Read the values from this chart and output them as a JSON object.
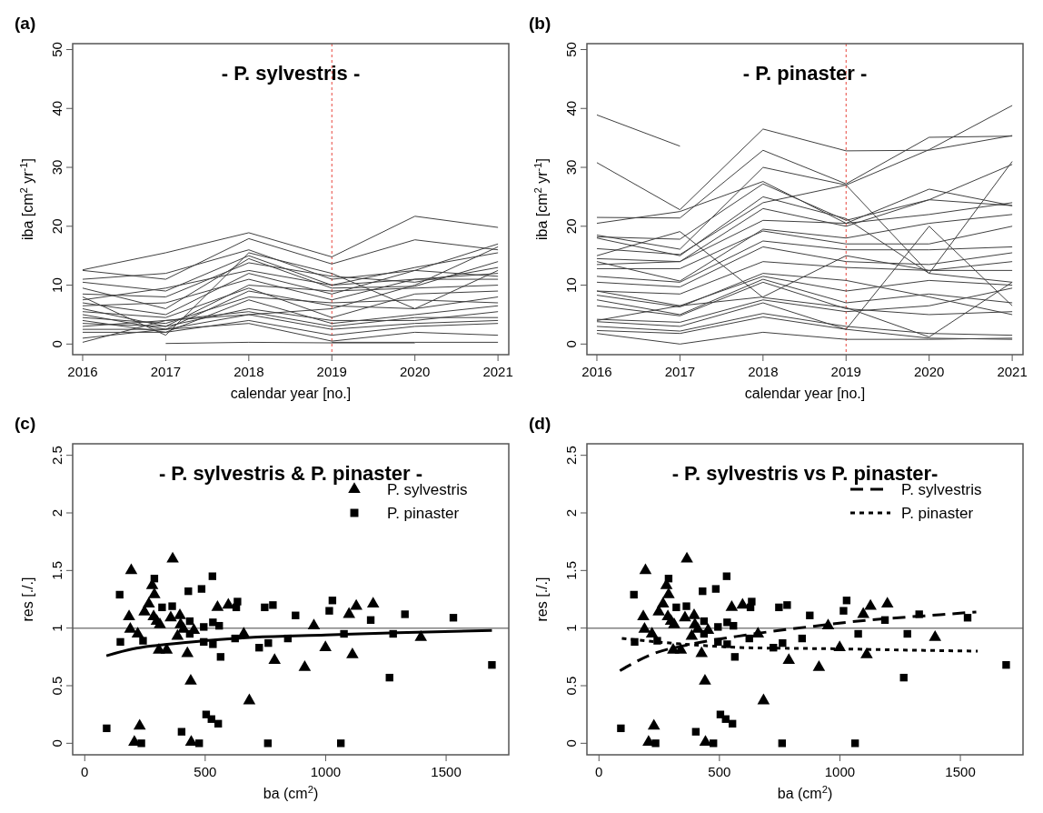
{
  "chart_data": [
    {
      "type": "line",
      "title": "- P. sylvestris -",
      "xlabel": "calendar year [no.]",
      "ylabel": "iba [cm$^{2}$ yr$^{-1}$]",
      "annotations": [
        "(a)"
      ],
      "xlim": [
        2015.88,
        2021.13
      ],
      "xticks": [
        2016,
        2017,
        2018,
        2019,
        2020,
        2021
      ],
      "ylim": [
        -1.8,
        51
      ],
      "yticks": [
        0,
        10,
        20,
        30,
        40,
        50
      ],
      "ref_lines": [
        {
          "axis": "x",
          "value": 2019,
          "color": "#e8463c",
          "line_style": "dashed"
        }
      ],
      "x": [
        2016,
        2017,
        2018,
        2019,
        2020,
        2021
      ],
      "series": [
        {
          "color": "#404040",
          "values": [
            12.6,
            15.5,
            18.9,
            14.8,
            21.7,
            19.8
          ]
        },
        {
          "color": "#404040",
          "values": [
            12.5,
            11.0,
            17.9,
            13.6,
            17.7,
            16.0
          ]
        },
        {
          "color": "#404040",
          "values": [
            11.0,
            12.0,
            16.0,
            11.0,
            12.5,
            17.0
          ]
        },
        {
          "color": "#404040",
          "values": [
            10.5,
            9.0,
            15.0,
            10.0,
            13.0,
            15.5
          ]
        },
        {
          "color": "#404040",
          "values": [
            9.5,
            6.0,
            14.5,
            9.5,
            9.8,
            14.0
          ]
        },
        {
          "color": "#404040",
          "values": [
            8.5,
            8.0,
            13.8,
            11.5,
            10.5,
            13.0
          ]
        },
        {
          "color": "#404040",
          "values": [
            8.0,
            1.5,
            15.5,
            12.0,
            6.0,
            12.5
          ]
        },
        {
          "color": "#404040",
          "values": [
            7.5,
            9.5,
            12.5,
            10.0,
            11.0,
            12.0
          ]
        },
        {
          "color": "#404040",
          "values": [
            7.0,
            5.0,
            12.0,
            8.5,
            12.5,
            11.5
          ]
        },
        {
          "color": "#404040",
          "values": [
            6.5,
            7.0,
            11.0,
            7.5,
            11.0,
            11.0
          ]
        },
        {
          "color": "#404040",
          "values": [
            6.0,
            3.0,
            10.0,
            9.0,
            9.5,
            10.0
          ]
        },
        {
          "color": "#404040",
          "values": [
            5.5,
            4.5,
            9.5,
            4.5,
            8.5,
            9.0
          ]
        },
        {
          "color": "#404040",
          "values": [
            5.0,
            2.5,
            9.0,
            6.5,
            6.0,
            8.0
          ]
        },
        {
          "color": "#404040",
          "values": [
            4.5,
            3.5,
            8.0,
            7.0,
            7.5,
            7.0
          ]
        },
        {
          "color": "#404040",
          "values": [
            4.0,
            2.0,
            7.5,
            3.5,
            5.0,
            6.5
          ]
        },
        {
          "color": "#404040",
          "values": [
            3.5,
            3.0,
            6.0,
            4.0,
            4.0,
            5.5
          ]
        },
        {
          "color": "#404040",
          "values": [
            3.0,
            4.0,
            5.5,
            3.0,
            4.5,
            4.5
          ]
        },
        {
          "color": "#404040",
          "values": [
            2.5,
            2.5,
            5.0,
            2.5,
            3.5,
            4.0
          ]
        },
        {
          "color": "#404040",
          "values": [
            2.0,
            2.0,
            4.0,
            1.5,
            3.0,
            3.5
          ]
        },
        {
          "color": "#404040",
          "values": [
            1.0,
            2.5,
            3.5,
            0.5,
            2.0,
            1.5
          ]
        },
        {
          "color": "#404040",
          "values": [
            0.3,
            4.0,
            5.0,
            6.0,
            10.0,
            16.5
          ]
        },
        {
          "color": "#404040",
          "values": [
            null,
            0.1,
            0.3,
            0.2,
            0.2,
            null
          ]
        },
        {
          "color": "#404040",
          "values": [
            null,
            null,
            null,
            0.3,
            0.3,
            0.3
          ]
        }
      ]
    },
    {
      "type": "line",
      "title": "- P. pinaster -",
      "xlabel": "calendar year [no.]",
      "ylabel": "iba [cm$^{2}$ yr$^{-1}$]",
      "annotations": [
        "(b)"
      ],
      "xlim": [
        2015.88,
        2021.13
      ],
      "xticks": [
        2016,
        2017,
        2018,
        2019,
        2020,
        2021
      ],
      "ylim": [
        -1.8,
        51
      ],
      "yticks": [
        0,
        10,
        20,
        30,
        40,
        50
      ],
      "ref_lines": [
        {
          "axis": "x",
          "value": 2019,
          "color": "#e8463c",
          "line_style": "dashed"
        }
      ],
      "x": [
        2016,
        2017,
        2018,
        2019,
        2020,
        2021
      ],
      "series": [
        {
          "color": "#404040",
          "values": [
            38.9,
            33.6,
            null,
            null,
            null,
            null
          ]
        },
        {
          "color": "#404040",
          "values": [
            30.8,
            22.8,
            36.5,
            32.8,
            32.9,
            35.4
          ]
        },
        {
          "color": "#404040",
          "values": [
            21.5,
            21.4,
            32.9,
            27.2,
            35.1,
            35.3
          ]
        },
        {
          "color": "#404040",
          "values": [
            18.5,
            16.1,
            30.0,
            27.0,
            33.0,
            40.5
          ]
        },
        {
          "color": "#404040",
          "values": [
            20.5,
            22.5,
            27.6,
            20.5,
            26.3,
            23.5
          ]
        },
        {
          "color": "#404040",
          "values": [
            18.2,
            17.8,
            27.2,
            21.0,
            24.5,
            30.5
          ]
        },
        {
          "color": "#404040",
          "values": [
            18.0,
            15.0,
            25.0,
            21.3,
            12.0,
            31.0
          ]
        },
        {
          "color": "#404040",
          "values": [
            16.2,
            15.2,
            24.0,
            27.0,
            12.0,
            10.5
          ]
        },
        {
          "color": "#404040",
          "values": [
            14.5,
            14.0,
            23.0,
            20.0,
            24.5,
            23.5
          ]
        },
        {
          "color": "#404040",
          "values": [
            13.5,
            14.0,
            21.0,
            20.5,
            22.0,
            24.0
          ]
        },
        {
          "color": "#404040",
          "values": [
            14.0,
            10.7,
            19.5,
            18.0,
            20.5,
            22.0
          ]
        },
        {
          "color": "#404040",
          "values": [
            12.8,
            12.8,
            19.2,
            17.0,
            17.0,
            20.0
          ]
        },
        {
          "color": "#404040",
          "values": [
            11.5,
            10.5,
            17.5,
            16.0,
            16.0,
            16.5
          ]
        },
        {
          "color": "#404040",
          "values": [
            10.5,
            9.7,
            16.5,
            14.0,
            13.5,
            15.5
          ]
        },
        {
          "color": "#404040",
          "values": [
            9.0,
            8.5,
            14.0,
            13.0,
            12.5,
            12.5
          ]
        },
        {
          "color": "#404040",
          "values": [
            15.0,
            19.1,
            7.9,
            6.2,
            1.2,
            10.5
          ]
        },
        {
          "color": "#404040",
          "values": [
            9.0,
            6.5,
            11.5,
            9.0,
            10.8,
            10.0
          ]
        },
        {
          "color": "#404040",
          "values": [
            8.3,
            6.3,
            12.0,
            10.8,
            8.0,
            5.0
          ]
        },
        {
          "color": "#404040",
          "values": [
            7.5,
            5.0,
            11.0,
            7.0,
            8.5,
            7.0
          ]
        },
        {
          "color": "#404040",
          "values": [
            6.5,
            4.8,
            10.5,
            6.0,
            5.0,
            5.5
          ]
        },
        {
          "color": "#404040",
          "values": [
            4.0,
            6.5,
            8.0,
            15.0,
            12.5,
            14.0
          ]
        },
        {
          "color": "#404040",
          "values": [
            4.2,
            3.7,
            7.5,
            5.5,
            6.5,
            9.5
          ]
        },
        {
          "color": "#404040",
          "values": [
            3.8,
            3.0,
            7.0,
            2.5,
            20.0,
            6.5
          ]
        },
        {
          "color": "#404040",
          "values": [
            2.3,
            1.8,
            4.6,
            2.5,
            1.0,
            0.8
          ]
        },
        {
          "color": "#404040",
          "values": [
            3.0,
            2.2,
            5.2,
            3.0,
            1.8,
            1.5
          ]
        },
        {
          "color": "#404040",
          "values": [
            1.8,
            0.0,
            2.0,
            0.8,
            0.8,
            1.0
          ]
        }
      ]
    },
    {
      "type": "scatter",
      "title": "- P. sylvestris & P. pinaster -",
      "xlabel": "ba (cm$^{2}$)",
      "ylabel": "res [./.]",
      "annotations": [
        "(c)"
      ],
      "xlim": [
        -50,
        1760
      ],
      "xticks": [
        0,
        500,
        1000,
        1500
      ],
      "ylim": [
        -0.1,
        2.6
      ],
      "yticks": [
        0,
        0.5,
        1,
        1.5,
        2,
        2.5
      ],
      "legend": "top right",
      "ref_lines": [
        {
          "axis": "y",
          "value": 1,
          "color": "#808080",
          "line_style": "solid"
        }
      ],
      "series": [
        {
          "name": "P. sylvestris",
          "marker": "triangle",
          "color": "#000000",
          "x": [
            193,
            365,
            280,
            289,
            266,
            248,
            184,
            286,
            299,
            312,
            357,
            395,
            398,
            410,
            385,
            453,
            189,
            220,
            308,
            340,
            426,
            440,
            551,
            596,
            660,
            788,
            913,
            683,
            228,
            206,
            442,
            951,
            999,
            1111,
            1097,
            1127,
            1197,
            1395
          ],
          "values": [
            1.5,
            1.6,
            1.37,
            1.29,
            1.21,
            1.14,
            1.1,
            1.1,
            1.06,
            1.03,
            1.09,
            1.11,
            1.03,
            0.99,
            0.93,
            0.98,
            0.99,
            0.95,
            0.81,
            0.81,
            0.78,
            0.54,
            1.18,
            1.2,
            0.95,
            0.72,
            0.66,
            0.37,
            0.15,
            0.01,
            0.01,
            1.02,
            0.83,
            0.77,
            1.12,
            1.19,
            1.21,
            0.92
          ]
        },
        {
          "name": "P. pinaster",
          "marker": "square",
          "color": "#000000",
          "x": [
            145,
            289,
            530,
            430,
            485,
            148,
            242,
            321,
            363,
            436,
            494,
            532,
            558,
            494,
            532,
            564,
            634,
            629,
            436,
            624,
            747,
            781,
            724,
            762,
            843,
            875,
            1028,
            1015,
            1076,
            1187,
            1280,
            1329,
            1530,
            1265,
            1690,
            91,
            402,
            504,
            526,
            554,
            235,
            475,
            760,
            1063
          ],
          "values": [
            1.29,
            1.43,
            1.45,
            1.32,
            1.34,
            0.88,
            0.89,
            1.18,
            1.19,
            1.06,
            1.01,
            1.05,
            1.02,
            0.88,
            0.86,
            0.75,
            1.23,
            1.18,
            0.95,
            0.91,
            1.18,
            1.2,
            0.83,
            0.87,
            0.91,
            1.11,
            1.24,
            1.15,
            0.95,
            1.07,
            0.95,
            1.12,
            1.09,
            0.57,
            0.68,
            0.13,
            0.1,
            0.25,
            0.21,
            0.17,
            0.0,
            0.0,
            0.0,
            0.0
          ]
        },
        {
          "type": "line",
          "line_style": "solid",
          "color": "#000000",
          "x": [
            90,
            200,
            300,
            500,
            700,
            1000,
            1300,
            1690
          ],
          "values": [
            0.76,
            0.82,
            0.85,
            0.89,
            0.92,
            0.94,
            0.96,
            0.98
          ]
        }
      ]
    },
    {
      "type": "scatter",
      "title": "- P. sylvestris vs P. pinaster-",
      "xlabel": "ba (cm$^{2}$)",
      "ylabel": "res [./.]",
      "annotations": [
        "(d)"
      ],
      "xlim": [
        -50,
        1760
      ],
      "xticks": [
        0,
        500,
        1000,
        1500
      ],
      "ylim": [
        -0.1,
        2.6
      ],
      "yticks": [
        0,
        0.5,
        1,
        1.5,
        2,
        2.5
      ],
      "legend": "top right",
      "ref_lines": [
        {
          "axis": "y",
          "value": 1,
          "color": "#808080",
          "line_style": "solid"
        }
      ],
      "series": [
        {
          "marker": "triangle",
          "color": "#000000",
          "x": [
            193,
            365,
            280,
            289,
            266,
            248,
            184,
            286,
            299,
            312,
            357,
            395,
            398,
            410,
            385,
            453,
            189,
            220,
            308,
            340,
            426,
            440,
            551,
            596,
            660,
            788,
            913,
            683,
            228,
            206,
            442,
            951,
            999,
            1111,
            1097,
            1127,
            1197,
            1395
          ],
          "values": [
            1.5,
            1.6,
            1.37,
            1.29,
            1.21,
            1.14,
            1.1,
            1.1,
            1.06,
            1.03,
            1.09,
            1.11,
            1.03,
            0.99,
            0.93,
            0.98,
            0.99,
            0.95,
            0.81,
            0.81,
            0.78,
            0.54,
            1.18,
            1.2,
            0.95,
            0.72,
            0.66,
            0.37,
            0.15,
            0.01,
            0.01,
            1.02,
            0.83,
            0.77,
            1.12,
            1.19,
            1.21,
            0.92
          ]
        },
        {
          "marker": "square",
          "color": "#000000",
          "x": [
            145,
            289,
            530,
            430,
            485,
            148,
            242,
            321,
            363,
            436,
            494,
            532,
            558,
            494,
            532,
            564,
            634,
            629,
            436,
            624,
            747,
            781,
            724,
            762,
            843,
            875,
            1028,
            1015,
            1076,
            1187,
            1280,
            1329,
            1530,
            1265,
            1690,
            91,
            402,
            504,
            526,
            554,
            235,
            475,
            760,
            1063
          ],
          "values": [
            1.29,
            1.43,
            1.45,
            1.32,
            1.34,
            0.88,
            0.89,
            1.18,
            1.19,
            1.06,
            1.01,
            1.05,
            1.02,
            0.88,
            0.86,
            0.75,
            1.23,
            1.18,
            0.95,
            0.91,
            1.18,
            1.2,
            0.83,
            0.87,
            0.91,
            1.11,
            1.24,
            1.15,
            0.95,
            1.07,
            0.95,
            1.12,
            1.09,
            0.57,
            0.68,
            0.13,
            0.1,
            0.25,
            0.21,
            0.17,
            0.0,
            0.0,
            0.0,
            0.0
          ]
        },
        {
          "name": "P. sylvestris",
          "type": "line",
          "line_style": "dashed",
          "color": "#000000",
          "x": [
            87,
            216,
            382,
            611,
            866,
            1120,
            1375,
            1566
          ],
          "values": [
            0.63,
            0.77,
            0.86,
            0.94,
            1.01,
            1.07,
            1.11,
            1.14
          ]
        },
        {
          "name": "P. pinaster",
          "type": "line",
          "line_style": "dotted",
          "color": "#000000",
          "x": [
            95,
            356,
            611,
            993,
            1248,
            1572
          ],
          "values": [
            0.91,
            0.86,
            0.83,
            0.82,
            0.81,
            0.8
          ]
        }
      ]
    }
  ]
}
